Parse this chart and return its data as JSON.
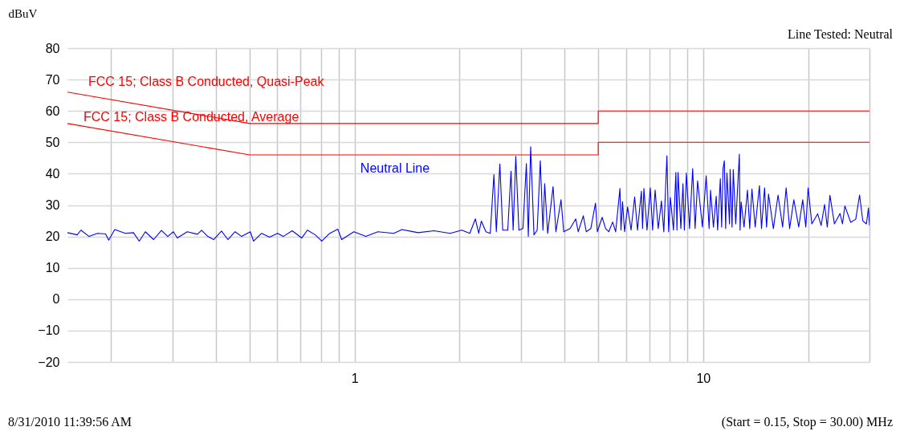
{
  "chart_data": {
    "type": "line",
    "subtitle": "Line Tested: Neutral",
    "ylabel": "dBuV",
    "annotations": [
      "8/31/2010 11:39:56 AM",
      "(Start = 0.15, Stop = 30.00) MHz"
    ],
    "xlim": [
      0.15,
      30
    ],
    "ylim": [
      -20,
      80
    ],
    "log": "x",
    "grid": true,
    "line_style": "solid",
    "xticks": [
      {
        "value": 0.2,
        "label": null
      },
      {
        "value": 0.3,
        "label": null
      },
      {
        "value": 0.4,
        "label": null
      },
      {
        "value": 0.5,
        "label": null
      },
      {
        "value": 0.6,
        "label": null
      },
      {
        "value": 0.7,
        "label": null
      },
      {
        "value": 0.8,
        "label": null
      },
      {
        "value": 0.9,
        "label": null
      },
      1,
      {
        "value": 2,
        "label": null
      },
      {
        "value": 3,
        "label": null
      },
      {
        "value": 4,
        "label": null
      },
      {
        "value": 5,
        "label": null
      },
      {
        "value": 6,
        "label": null
      },
      {
        "value": 7,
        "label": null
      },
      {
        "value": 8,
        "label": null
      },
      {
        "value": 9,
        "label": null
      },
      10,
      {
        "value": 20,
        "label": null
      },
      {
        "value": 30,
        "label": null
      }
    ],
    "yticks": [
      -20,
      -10,
      0,
      10,
      20,
      30,
      40,
      50,
      60,
      70,
      80
    ],
    "series": [
      {
        "name": "FCC 15; Class B Conducted, Quasi-Peak",
        "color": "#ff0000",
        "x": [
          0.15,
          0.5,
          5,
          5,
          30
        ],
        "values": [
          66,
          56,
          56,
          60,
          60
        ]
      },
      {
        "name": "FCC 15; Class B Conducted, Average",
        "color": "#ff0000",
        "x": [
          0.15,
          0.5,
          5,
          5,
          30
        ],
        "values": [
          56,
          46,
          46,
          50,
          50
        ]
      },
      {
        "name": "Neutral Line",
        "color": "#0000ff",
        "x": [
          0.15,
          0.16,
          0.164,
          0.173,
          0.183,
          0.193,
          0.197,
          0.205,
          0.22,
          0.232,
          0.241,
          0.251,
          0.265,
          0.279,
          0.291,
          0.302,
          0.31,
          0.331,
          0.354,
          0.364,
          0.379,
          0.394,
          0.415,
          0.433,
          0.454,
          0.474,
          0.502,
          0.513,
          0.541,
          0.57,
          0.601,
          0.624,
          0.662,
          0.705,
          0.732,
          0.771,
          0.805,
          0.849,
          0.895,
          0.918,
          0.995,
          1.077,
          1.166,
          1.296,
          1.367,
          1.52,
          1.69,
          1.88,
          2.03,
          2.14,
          2.22,
          2.27,
          2.31,
          2.38,
          2.45,
          2.51,
          2.55,
          2.61,
          2.66,
          2.75,
          2.81,
          2.85,
          2.9,
          2.96,
          3.04,
          3.11,
          3.15,
          3.2,
          3.27,
          3.34,
          3.41,
          3.47,
          3.51,
          3.58,
          3.71,
          3.78,
          3.91,
          3.98,
          4.15,
          4.31,
          4.38,
          4.53,
          4.62,
          4.76,
          4.91,
          4.97,
          5.13,
          5.25,
          5.36,
          5.5,
          5.61,
          5.77,
          5.81,
          5.87,
          5.95,
          6.07,
          6.21,
          6.36,
          6.48,
          6.65,
          6.7,
          6.76,
          6.9,
          7.05,
          7.16,
          7.28,
          7.43,
          7.59,
          7.71,
          7.87,
          7.96,
          8.05,
          8.22,
          8.35,
          8.41,
          8.47,
          8.63,
          8.75,
          8.83,
          8.95,
          9.14,
          9.33,
          9.48,
          9.64,
          9.95,
          10.2,
          10.4,
          10.5,
          10.7,
          10.9,
          11.0,
          11.2,
          11.3,
          11.4,
          11.5,
          11.6,
          11.7,
          11.9,
          11.95,
          12.1,
          12.2,
          12.4,
          12.7,
          12.76,
          12.85,
          13.1,
          13.4,
          13.6,
          13.8,
          14.1,
          14.5,
          14.7,
          15.0,
          15.2,
          15.4,
          15.9,
          16.4,
          16.9,
          17.3,
          17.7,
          18.2,
          18.8,
          19.3,
          19.7,
          20.0,
          20.5,
          21.3,
          21.8,
          22.3,
          22.7,
          23.1,
          23.8,
          24.7,
          25.1,
          25.5,
          26.5,
          27.4,
          28.1,
          28.7,
          29.4,
          29.8,
          30
        ],
        "values": [
          21.2,
          20.5,
          22.0,
          20,
          21,
          20.8,
          18.8,
          22.2,
          21,
          21.2,
          18.5,
          21.5,
          19,
          21.9,
          20,
          21.5,
          19.5,
          21.5,
          20.7,
          22,
          20,
          19,
          21.7,
          19,
          21.5,
          20,
          21.5,
          18.5,
          21,
          19.8,
          21,
          20,
          21.8,
          19.5,
          22,
          20.5,
          18.5,
          21,
          22.3,
          19,
          21.5,
          20,
          21.5,
          21,
          22.2,
          21.2,
          21.8,
          21,
          22,
          21,
          25.6,
          21,
          24.9,
          21.5,
          21,
          39.7,
          21.5,
          43.1,
          22,
          22,
          40.8,
          22,
          45.5,
          22,
          22.5,
          43.2,
          20,
          48.6,
          20.5,
          22,
          44.1,
          22,
          36.8,
          21,
          35.9,
          21.5,
          31.7,
          21.5,
          22.5,
          25.6,
          21.5,
          26.6,
          21.5,
          22.5,
          30.6,
          21.5,
          26.1,
          22.5,
          21.5,
          24.6,
          21.5,
          35.3,
          22,
          31.1,
          21.5,
          29.4,
          22,
          32.6,
          22,
          34.4,
          22.5,
          35.3,
          22,
          35.5,
          22,
          34.8,
          22.5,
          31.3,
          21.5,
          45.7,
          21.5,
          32.4,
          22,
          40.4,
          22,
          40.4,
          22.5,
          36.8,
          22,
          40.2,
          22.5,
          41.6,
          22.5,
          37.7,
          23,
          39.3,
          22.5,
          34.7,
          23,
          32.8,
          22,
          38.4,
          23,
          41.5,
          44.1,
          22.5,
          40.2,
          24,
          41.4,
          23,
          41.3,
          24,
          46.2,
          22,
          31.0,
          23,
          34.8,
          22.5,
          35.1,
          23,
          36.2,
          22.5,
          35.5,
          23,
          33.5,
          22.5,
          33.2,
          23,
          35.5,
          22.5,
          31.7,
          23,
          31.7,
          23,
          35.5,
          24,
          27.2,
          23.5,
          30.2,
          23,
          33.1,
          24,
          27.3,
          24,
          29.7,
          24.5,
          25.5,
          33.2,
          25,
          24,
          29.1,
          23.5
        ]
      }
    ]
  }
}
